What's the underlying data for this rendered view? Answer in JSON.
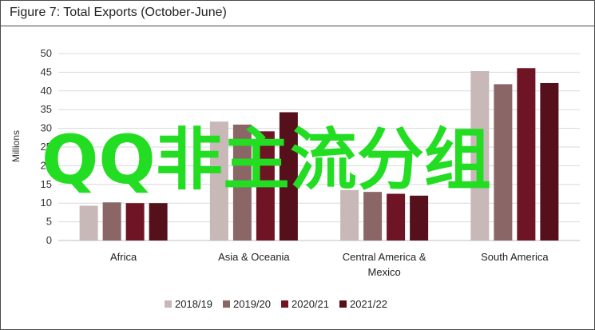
{
  "figure_title": "Figure 7: Total Exports (October-June)",
  "watermark_text": "QQ非主流分组",
  "chart_data": {
    "type": "bar",
    "title": "Figure 7: Total Exports (October-June)",
    "ylabel": "Millions",
    "xlabel": "",
    "ylim": [
      0,
      50
    ],
    "yticks": [
      0,
      5,
      10,
      15,
      20,
      25,
      30,
      35,
      40,
      45,
      50
    ],
    "grid": true,
    "legend_position": "bottom",
    "categories": [
      "Africa",
      "Asia & Oceania",
      "Central America & Mexico",
      "South America"
    ],
    "category_lines": [
      [
        "Africa"
      ],
      [
        "Asia & Oceania"
      ],
      [
        "Central America &",
        "Mexico"
      ],
      [
        "South America"
      ]
    ],
    "series": [
      {
        "name": "2018/19",
        "color": "#c8b8b8",
        "values": [
          9.3,
          31.8,
          13.5,
          45.3
        ]
      },
      {
        "name": "2019/20",
        "color": "#8b6666",
        "values": [
          10.2,
          31.0,
          13.0,
          41.8
        ]
      },
      {
        "name": "2020/21",
        "color": "#6e1424",
        "values": [
          10.0,
          29.2,
          12.5,
          46.1
        ]
      },
      {
        "name": "2021/22",
        "color": "#55101c",
        "values": [
          10.0,
          34.3,
          12.0,
          42.1
        ]
      }
    ]
  }
}
